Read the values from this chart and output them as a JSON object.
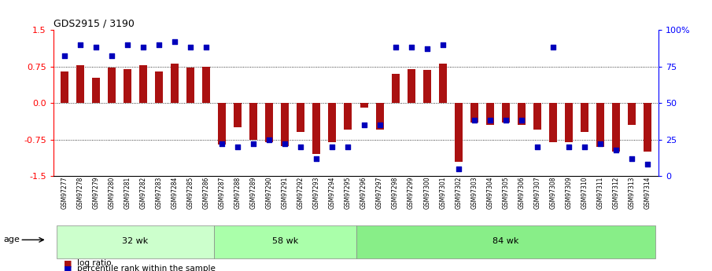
{
  "title": "GDS2915 / 3190",
  "samples": [
    "GSM97277",
    "GSM97278",
    "GSM97279",
    "GSM97280",
    "GSM97281",
    "GSM97282",
    "GSM97283",
    "GSM97284",
    "GSM97285",
    "GSM97286",
    "GSM97287",
    "GSM97288",
    "GSM97289",
    "GSM97290",
    "GSM97291",
    "GSM97292",
    "GSM97293",
    "GSM97294",
    "GSM97295",
    "GSM97296",
    "GSM97297",
    "GSM97298",
    "GSM97299",
    "GSM97300",
    "GSM97301",
    "GSM97302",
    "GSM97303",
    "GSM97304",
    "GSM97305",
    "GSM97306",
    "GSM97307",
    "GSM97308",
    "GSM97309",
    "GSM97310",
    "GSM97311",
    "GSM97312",
    "GSM97313",
    "GSM97314"
  ],
  "log_ratio": [
    0.65,
    0.77,
    0.52,
    0.72,
    0.7,
    0.77,
    0.65,
    0.8,
    0.72,
    0.75,
    -0.85,
    -0.5,
    -0.75,
    -0.8,
    -0.88,
    -0.6,
    -1.05,
    -0.8,
    -0.55,
    -0.1,
    -0.55,
    0.6,
    0.7,
    0.68,
    0.8,
    -1.2,
    -0.4,
    -0.45,
    -0.4,
    -0.45,
    -0.55,
    -0.8,
    -0.8,
    -0.6,
    -0.9,
    -1.0,
    -0.45,
    -1.0
  ],
  "percentile": [
    82,
    90,
    88,
    82,
    90,
    88,
    90,
    92,
    88,
    88,
    22,
    20,
    22,
    25,
    22,
    20,
    12,
    20,
    20,
    35,
    35,
    88,
    88,
    87,
    90,
    5,
    38,
    38,
    38,
    38,
    20,
    88,
    20,
    20,
    22,
    18,
    12,
    8
  ],
  "groups": [
    {
      "label": "32 wk",
      "start": 0,
      "end": 10
    },
    {
      "label": "58 wk",
      "start": 10,
      "end": 19
    },
    {
      "label": "84 wk",
      "start": 19,
      "end": 38
    }
  ],
  "group_colors": [
    "#ccffcc",
    "#aaffaa",
    "#88ee88"
  ],
  "ylim_left": [
    -1.5,
    1.5
  ],
  "yticks_left": [
    -1.5,
    -0.75,
    0.0,
    0.75,
    1.5
  ],
  "yticks_right_pct": [
    0,
    25,
    50,
    75,
    100
  ],
  "bar_color": "#aa1111",
  "dot_color": "#0000bb",
  "hlines": [
    -0.75,
    0.0,
    0.75
  ],
  "title_fontsize": 9,
  "bar_width": 0.5,
  "age_label": "age",
  "legend_bar_label": "log ratio",
  "legend_dot_label": "percentile rank within the sample"
}
